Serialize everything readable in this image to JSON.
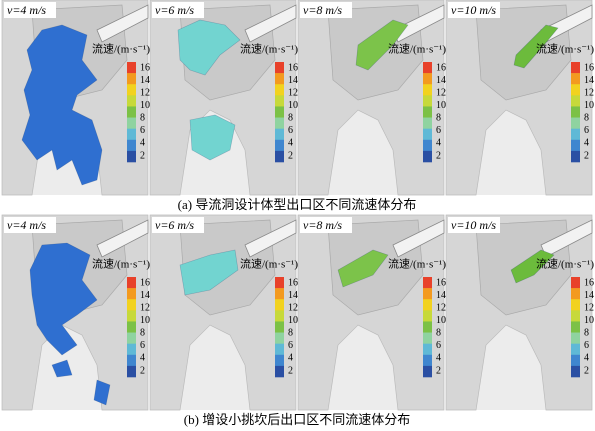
{
  "colorbar": {
    "title": "流速/(m·s⁻¹)",
    "ticks": [
      "16",
      "14",
      "12",
      "10",
      "8",
      "6",
      "4",
      "2"
    ],
    "colors": [
      "#e8412a",
      "#f39a1f",
      "#f2d21f",
      "#c7d93a",
      "#7cc146",
      "#8fd3a0",
      "#5fb9d6",
      "#3f86cf",
      "#2a4fa3"
    ]
  },
  "rows": [
    {
      "caption": "(a) 导流洞设计体型出口区不同流速体分布",
      "panels": [
        {
          "label": "v=4 m/s",
          "color": "#2f6fd0"
        },
        {
          "label": "v=6 m/s",
          "color": "#72d4d0"
        },
        {
          "label": "v=8 m/s",
          "color": "#7cc34a"
        },
        {
          "label": "v=10 m/s",
          "color": "#6cbb3c"
        }
      ]
    },
    {
      "caption": "(b) 增设小挑坎后出口区不同流速体分布",
      "panels": [
        {
          "label": "v=4 m/s",
          "color": "#2f6fd0"
        },
        {
          "label": "v=6 m/s",
          "color": "#72d4d0"
        },
        {
          "label": "v=8 m/s",
          "color": "#7cc34a"
        },
        {
          "label": "v=10 m/s",
          "color": "#6cbb3c"
        }
      ]
    }
  ]
}
